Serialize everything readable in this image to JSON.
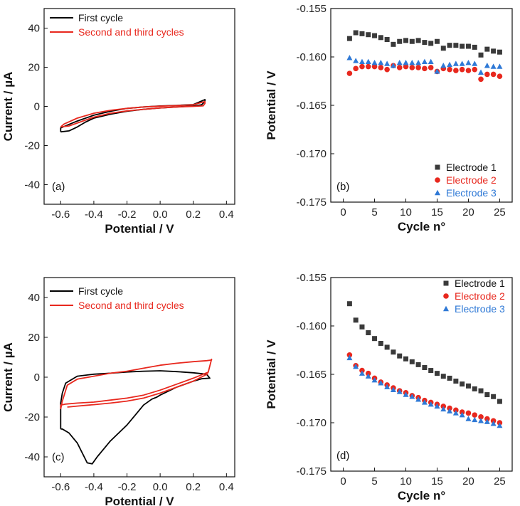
{
  "chart_data": [
    {
      "panel": "(a)",
      "type": "line",
      "xlabel": "Potential / V",
      "ylabel": "Current / µA",
      "xlim": [
        -0.7,
        0.45
      ],
      "ylim": [
        -50,
        50
      ],
      "xticks": [
        -0.6,
        -0.4,
        -0.2,
        0.0,
        0.2,
        0.4
      ],
      "xtick_labels": [
        "-0.6",
        "-0.4",
        "-0.2",
        "0.0",
        "0.2",
        "0.4"
      ],
      "yticks": [
        -40,
        -20,
        0,
        20,
        40
      ],
      "ytick_labels": [
        "-40",
        "-20",
        "0",
        "20",
        "40"
      ],
      "legend_position": "top-left",
      "series": [
        {
          "name": "First cycle",
          "color": "#000000",
          "x": [
            -0.6,
            -0.55,
            -0.5,
            -0.45,
            -0.4,
            -0.3,
            -0.2,
            -0.1,
            0.0,
            0.1,
            0.2,
            0.25,
            0.27,
            0.27,
            0.2,
            0.1,
            0.0,
            -0.1,
            -0.2,
            -0.3,
            -0.4,
            -0.5,
            -0.55,
            -0.6,
            -0.6
          ],
          "y": [
            -13,
            -12.5,
            -10.5,
            -8,
            -6,
            -4,
            -2.5,
            -1.5,
            -0.8,
            -0.3,
            0.2,
            0.8,
            2.5,
            3.5,
            0.9,
            0.5,
            0.2,
            -0.3,
            -1.0,
            -2.5,
            -4.5,
            -7.5,
            -9.2,
            -11,
            -13
          ]
        },
        {
          "name": "Second and third cycles",
          "color": "#e8281e",
          "x": [
            -0.6,
            -0.55,
            -0.5,
            -0.4,
            -0.3,
            -0.2,
            -0.1,
            0.0,
            0.1,
            0.2,
            0.26,
            0.27,
            0.27,
            0.2,
            0.1,
            0.0,
            -0.1,
            -0.2,
            -0.3,
            -0.4,
            -0.5,
            -0.58,
            -0.6
          ],
          "y": [
            -10.5,
            -10,
            -8.5,
            -5.5,
            -3.5,
            -2.3,
            -1.5,
            -0.8,
            -0.3,
            0.0,
            0.3,
            1.5,
            2.5,
            0.8,
            0.4,
            0.1,
            -0.3,
            -1.0,
            -2.0,
            -3.5,
            -6,
            -9,
            -10.5
          ]
        }
      ]
    },
    {
      "panel": "(b)",
      "type": "scatter",
      "xlabel": "Cycle n°",
      "ylabel": "Potential / V",
      "xlim": [
        -2,
        27
      ],
      "ylim": [
        -0.175,
        -0.155
      ],
      "xticks": [
        0,
        5,
        10,
        15,
        20,
        25
      ],
      "xtick_labels": [
        "0",
        "5",
        "10",
        "15",
        "20",
        "25"
      ],
      "yticks": [
        -0.175,
        -0.17,
        -0.165,
        -0.16,
        -0.155
      ],
      "ytick_labels": [
        "-0.175",
        "-0.170",
        "-0.165",
        "-0.160",
        "-0.155"
      ],
      "legend_position": "bottom-right",
      "series": [
        {
          "name": "Electrode 1",
          "marker": "square",
          "color": "#3a3a3a",
          "x": [
            1,
            2,
            3,
            4,
            5,
            6,
            7,
            8,
            9,
            10,
            11,
            12,
            13,
            14,
            15,
            16,
            17,
            18,
            19,
            20,
            21,
            22,
            23,
            24,
            25
          ],
          "y": [
            -0.1581,
            -0.1575,
            -0.1576,
            -0.1577,
            -0.1578,
            -0.158,
            -0.1582,
            -0.1587,
            -0.1584,
            -0.1583,
            -0.1584,
            -0.1583,
            -0.1585,
            -0.1586,
            -0.1584,
            -0.1591,
            -0.1588,
            -0.1588,
            -0.1589,
            -0.1589,
            -0.159,
            -0.1598,
            -0.1592,
            -0.1594,
            -0.1595
          ]
        },
        {
          "name": "Electrode 2",
          "marker": "circle",
          "color": "#e8281e",
          "x": [
            1,
            2,
            3,
            4,
            5,
            6,
            7,
            8,
            9,
            10,
            11,
            12,
            13,
            14,
            15,
            16,
            17,
            18,
            19,
            20,
            21,
            22,
            23,
            24,
            25
          ],
          "y": [
            -0.1617,
            -0.1612,
            -0.161,
            -0.161,
            -0.161,
            -0.1611,
            -0.1613,
            -0.1609,
            -0.1611,
            -0.161,
            -0.1611,
            -0.1611,
            -0.1612,
            -0.1611,
            -0.1615,
            -0.1612,
            -0.1613,
            -0.1614,
            -0.1613,
            -0.1614,
            -0.1613,
            -0.1623,
            -0.1618,
            -0.1618,
            -0.162
          ]
        },
        {
          "name": "Electrode 3",
          "marker": "triangle",
          "color": "#2f79d6",
          "x": [
            1,
            2,
            3,
            4,
            5,
            6,
            7,
            8,
            9,
            10,
            11,
            12,
            13,
            14,
            15,
            16,
            17,
            18,
            19,
            20,
            21,
            22,
            23,
            24,
            25
          ],
          "y": [
            -0.1601,
            -0.1604,
            -0.1605,
            -0.1605,
            -0.1606,
            -0.1606,
            -0.1607,
            -0.1609,
            -0.1606,
            -0.1606,
            -0.1606,
            -0.1606,
            -0.1605,
            -0.1605,
            -0.1615,
            -0.1609,
            -0.1608,
            -0.1607,
            -0.1607,
            -0.1606,
            -0.1607,
            -0.1616,
            -0.1609,
            -0.161,
            -0.161
          ]
        }
      ],
      "legend_text_colors": [
        "#111111",
        "#e8281e",
        "#2f79d6"
      ]
    },
    {
      "panel": "(c)",
      "type": "line",
      "xlabel": "Potential / V",
      "ylabel": "Current / µA",
      "xlim": [
        -0.7,
        0.45
      ],
      "ylim": [
        -50,
        50
      ],
      "xticks": [
        -0.6,
        -0.4,
        -0.2,
        0.0,
        0.2,
        0.4
      ],
      "xtick_labels": [
        "-0.6",
        "-0.4",
        "-0.2",
        "0.0",
        "0.2",
        "0.4"
      ],
      "yticks": [
        -40,
        -20,
        0,
        20,
        40
      ],
      "ytick_labels": [
        "-40",
        "-20",
        "0",
        "20",
        "40"
      ],
      "legend_position": "top-left",
      "series": [
        {
          "name": "First cycle",
          "color": "#000000",
          "x": [
            -0.6,
            -0.59,
            -0.55,
            -0.5,
            -0.47,
            -0.44,
            -0.41,
            -0.38,
            -0.3,
            -0.25,
            -0.2,
            -0.15,
            -0.1,
            -0.05,
            -0.02,
            0.0,
            0.1,
            0.2,
            0.25,
            0.3,
            0.28,
            0.2,
            0.1,
            0.0,
            -0.1,
            -0.2,
            -0.3,
            -0.4,
            -0.5,
            -0.57,
            -0.59,
            -0.6,
            -0.6
          ],
          "y": [
            -26,
            -26,
            -28,
            -33,
            -38,
            -43,
            -43.5,
            -40,
            -32,
            -28,
            -24,
            -19,
            -14,
            -11,
            -10,
            -9,
            -5,
            -2,
            -0.8,
            -0.5,
            1.5,
            2.2,
            2.8,
            3.2,
            3.0,
            2.6,
            2.0,
            1.5,
            0.5,
            -3,
            -8,
            -13,
            -26
          ]
        },
        {
          "name": "Second and third cycles",
          "color": "#e8281e",
          "x": [
            -0.6,
            -0.59,
            -0.56,
            -0.5,
            -0.4,
            -0.3,
            -0.2,
            -0.1,
            0.0,
            0.1,
            0.2,
            0.28,
            0.31,
            0.31,
            0.29,
            0.2,
            0.1,
            0.0,
            -0.1,
            -0.2,
            -0.3,
            -0.4,
            -0.5,
            -0.57,
            -0.6,
            -0.6
          ],
          "y": [
            -16,
            -12,
            -4,
            -1,
            0.5,
            2,
            3,
            4.5,
            6,
            7,
            7.8,
            8.3,
            8.6,
            9,
            2.5,
            -0.5,
            -3.5,
            -6.5,
            -9,
            -10.5,
            -11.5,
            -12.5,
            -13,
            -13.5,
            -14,
            -16
          ]
        }
      ],
      "extra_red_loop": {
        "x": [
          -0.56,
          -0.5,
          -0.4,
          -0.3,
          -0.2,
          -0.1,
          0.0,
          0.1,
          0.2,
          0.29
        ],
        "y": [
          -15,
          -14.5,
          -13.8,
          -13,
          -12,
          -10.5,
          -8,
          -5,
          -2,
          1.8
        ]
      }
    },
    {
      "panel": "(d)",
      "type": "scatter",
      "xlabel": "Cycle n°",
      "ylabel": "Potential / V",
      "xlim": [
        -2,
        27
      ],
      "ylim": [
        -0.175,
        -0.155
      ],
      "xticks": [
        0,
        5,
        10,
        15,
        20,
        25
      ],
      "xtick_labels": [
        "0",
        "5",
        "10",
        "15",
        "20",
        "25"
      ],
      "yticks": [
        -0.175,
        -0.17,
        -0.165,
        -0.16,
        -0.155
      ],
      "ytick_labels": [
        "-0.175",
        "-0.170",
        "-0.165",
        "-0.160",
        "-0.155"
      ],
      "legend_position": "top-right",
      "series": [
        {
          "name": "Electrode 1",
          "marker": "square",
          "color": "#3a3a3a",
          "x": [
            1,
            2,
            3,
            4,
            5,
            6,
            7,
            8,
            9,
            10,
            11,
            12,
            13,
            14,
            15,
            16,
            17,
            18,
            19,
            20,
            21,
            22,
            23,
            24,
            25
          ],
          "y": [
            -0.1577,
            -0.1594,
            -0.1601,
            -0.1607,
            -0.1613,
            -0.1618,
            -0.1622,
            -0.1627,
            -0.1631,
            -0.1634,
            -0.1637,
            -0.164,
            -0.1643,
            -0.1646,
            -0.1649,
            -0.1652,
            -0.1654,
            -0.1657,
            -0.166,
            -0.1662,
            -0.1665,
            -0.1667,
            -0.1671,
            -0.1673,
            -0.1678
          ]
        },
        {
          "name": "Electrode 2",
          "marker": "circle",
          "color": "#e8281e",
          "x": [
            1,
            2,
            3,
            4,
            5,
            6,
            7,
            8,
            9,
            10,
            11,
            12,
            13,
            14,
            15,
            16,
            17,
            18,
            19,
            20,
            21,
            22,
            23,
            24,
            25
          ],
          "y": [
            -0.163,
            -0.1641,
            -0.1646,
            -0.1649,
            -0.1654,
            -0.1658,
            -0.1661,
            -0.1664,
            -0.1667,
            -0.1669,
            -0.1672,
            -0.1674,
            -0.1677,
            -0.1679,
            -0.1681,
            -0.1683,
            -0.1685,
            -0.1687,
            -0.1689,
            -0.169,
            -0.1692,
            -0.1694,
            -0.1696,
            -0.1698,
            -0.17
          ]
        },
        {
          "name": "Electrode 3",
          "marker": "triangle",
          "color": "#2f79d6",
          "x": [
            1,
            2,
            3,
            4,
            5,
            6,
            7,
            8,
            9,
            10,
            11,
            12,
            13,
            14,
            15,
            16,
            17,
            18,
            19,
            20,
            21,
            22,
            23,
            24,
            25
          ],
          "y": [
            -0.1633,
            -0.1642,
            -0.1649,
            -0.1652,
            -0.1656,
            -0.1659,
            -0.1663,
            -0.1666,
            -0.1668,
            -0.1671,
            -0.1673,
            -0.1676,
            -0.1679,
            -0.1681,
            -0.1683,
            -0.1686,
            -0.1688,
            -0.169,
            -0.1692,
            -0.1696,
            -0.1697,
            -0.1698,
            -0.1699,
            -0.1701,
            -0.1703
          ]
        }
      ],
      "legend_text_colors": [
        "#111111",
        "#e8281e",
        "#2f79d6"
      ]
    }
  ]
}
